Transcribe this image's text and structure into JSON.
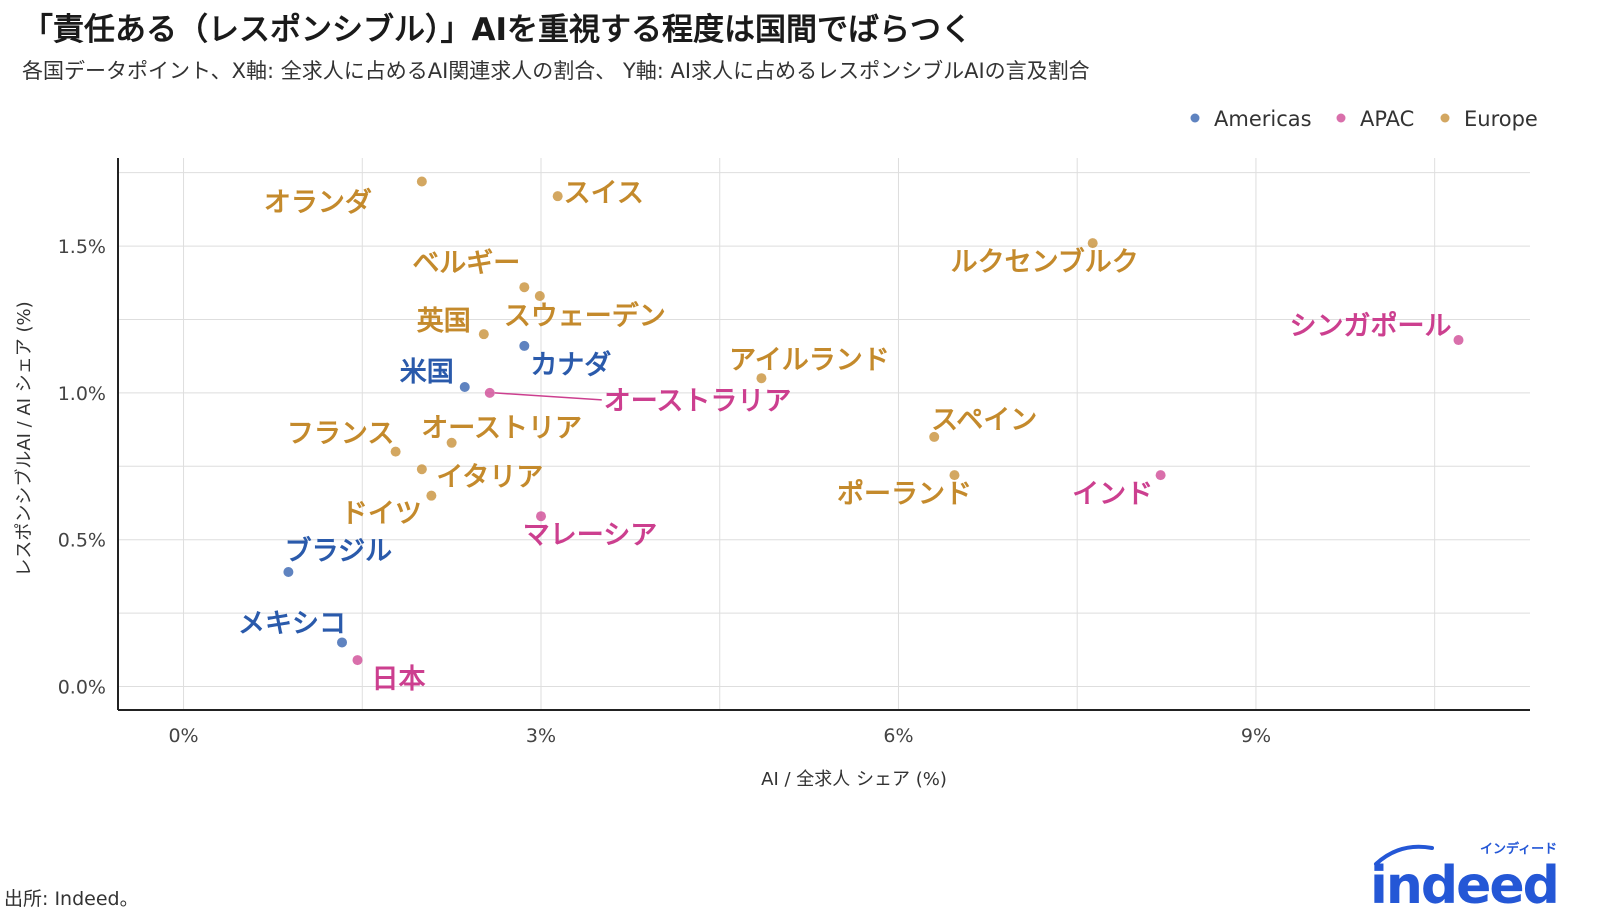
{
  "title": "「責任ある（レスポンシブル）」AIを重視する程度は国間でばらつく",
  "subtitle": "各国データポイント、X軸: 全求人に占めるAI関連求人の割合、 Y軸: AI求人に占めるレスポンシブルAIの言及割合",
  "source": "出所: Indeed。",
  "logo": {
    "main": "indeed",
    "sub": "インディード"
  },
  "colors": {
    "Americas": "#2a5aab",
    "APAC": "#cc3f8f",
    "Europe": "#c48a2c"
  },
  "chart_data": {
    "type": "scatter",
    "xlabel": "AI / 全求人 シェア (%)",
    "ylabel": "レスポンシブルAI / AI シェア (%)",
    "xlim": [
      -0.55,
      11.3
    ],
    "ylim": [
      -0.08,
      1.8
    ],
    "x_ticks": [
      0,
      3,
      6,
      9
    ],
    "x_tick_labels": [
      "0%",
      "3%",
      "6%",
      "9%"
    ],
    "y_ticks": [
      0.0,
      0.5,
      1.0,
      1.5
    ],
    "y_tick_labels": [
      "0.0%",
      "0.5%",
      "1.0%",
      "1.5%"
    ],
    "grid": true,
    "legend_position": "top-right",
    "legend": [
      "Americas",
      "APAC",
      "Europe"
    ],
    "points": [
      {
        "label": "オランダ",
        "x": 2.0,
        "y": 1.72,
        "region": "Europe"
      },
      {
        "label": "スイス",
        "x": 3.14,
        "y": 1.67,
        "region": "Europe"
      },
      {
        "label": "ルクセンブルク",
        "x": 7.63,
        "y": 1.51,
        "region": "Europe"
      },
      {
        "label": "ベルギー",
        "x": 2.86,
        "y": 1.36,
        "region": "Europe"
      },
      {
        "label": "スウェーデン",
        "x": 2.99,
        "y": 1.33,
        "region": "Europe"
      },
      {
        "label": "英国",
        "x": 2.52,
        "y": 1.2,
        "region": "Europe"
      },
      {
        "label": "シンガポール",
        "x": 10.7,
        "y": 1.18,
        "region": "APAC"
      },
      {
        "label": "カナダ",
        "x": 2.86,
        "y": 1.16,
        "region": "Americas"
      },
      {
        "label": "アイルランド",
        "x": 4.85,
        "y": 1.05,
        "region": "Europe"
      },
      {
        "label": "米国",
        "x": 2.36,
        "y": 1.02,
        "region": "Americas"
      },
      {
        "label": "オーストラリア",
        "x": 2.57,
        "y": 1.0,
        "region": "APAC"
      },
      {
        "label": "スペイン",
        "x": 6.3,
        "y": 0.85,
        "region": "Europe"
      },
      {
        "label": "オーストリア",
        "x": 2.25,
        "y": 0.83,
        "region": "Europe"
      },
      {
        "label": "フランス",
        "x": 1.78,
        "y": 0.8,
        "region": "Europe"
      },
      {
        "label": "イタリア",
        "x": 2.0,
        "y": 0.74,
        "region": "Europe"
      },
      {
        "label": "ポーランド",
        "x": 6.47,
        "y": 0.72,
        "region": "Europe"
      },
      {
        "label": "インド",
        "x": 8.2,
        "y": 0.72,
        "region": "APAC"
      },
      {
        "label": "ドイツ",
        "x": 2.08,
        "y": 0.65,
        "region": "Europe"
      },
      {
        "label": "マレーシア",
        "x": 3.0,
        "y": 0.58,
        "region": "APAC"
      },
      {
        "label": "ブラジル",
        "x": 0.88,
        "y": 0.39,
        "region": "Americas"
      },
      {
        "label": "メキシコ",
        "x": 1.33,
        "y": 0.15,
        "region": "Americas"
      },
      {
        "label": "日本",
        "x": 1.46,
        "y": 0.09,
        "region": "APAC"
      }
    ]
  }
}
